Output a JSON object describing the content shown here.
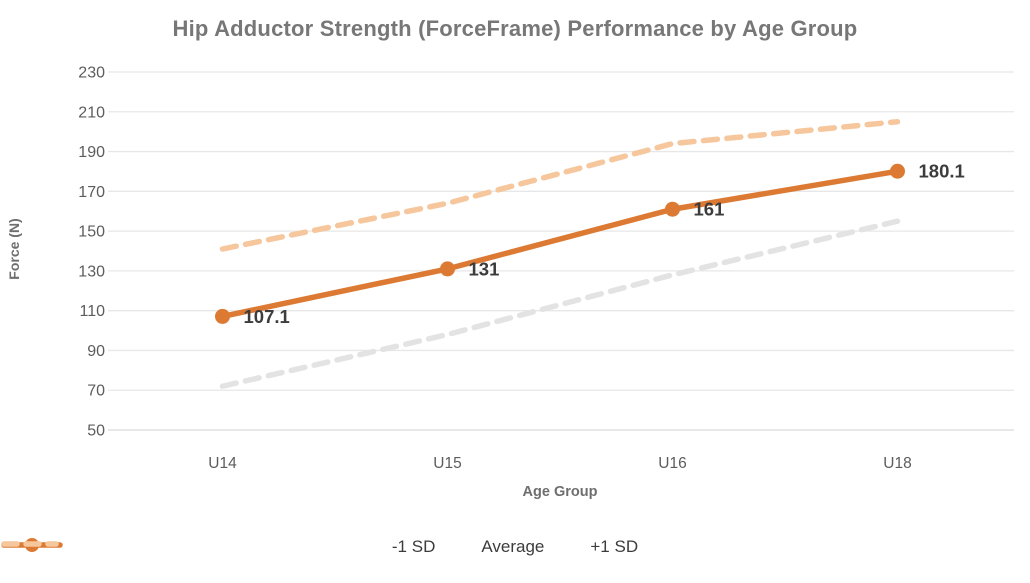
{
  "title": "Hip Adductor Strength (ForceFrame) Performance by Age Group",
  "colors": {
    "title_text": "#777777",
    "tick_label": "#5c5c5c",
    "axis_title": "#6e6e6e",
    "data_label": "#3c3c3c",
    "gridline": "#e7e7e7",
    "bottom_gridline": "#d9d9d9",
    "minus1sd_line": "#e3e3e3",
    "average_line": "#dc7a33",
    "plus1sd_line": "#f6c79d"
  },
  "chart_data": {
    "type": "line",
    "title": "Hip Adductor Strength (ForceFrame) Performance by Age Group",
    "xlabel": "Age Group",
    "ylabel": "Force (N)",
    "categories": [
      "U14",
      "U15",
      "U16",
      "U18"
    ],
    "series": [
      {
        "name": "-1 SD",
        "style": "dashed",
        "color": "#e3e3e3",
        "values": [
          72,
          98,
          128,
          155
        ],
        "show_labels": false
      },
      {
        "name": "Average",
        "style": "solid-marker",
        "color": "#dc7a33",
        "values": [
          107.1,
          131,
          161,
          180.1
        ],
        "show_labels": true,
        "data_labels": [
          "107.1",
          "131",
          "161",
          "180.1"
        ]
      },
      {
        "name": "+1 SD",
        "style": "dashed",
        "color": "#f6c79d",
        "values": [
          141,
          164,
          194,
          205
        ],
        "show_labels": false
      }
    ],
    "ylim": [
      50,
      230
    ],
    "yticks": [
      230,
      210,
      190,
      170,
      150,
      130,
      110,
      90,
      70,
      50
    ],
    "grid": true,
    "legend_position": "bottom"
  }
}
